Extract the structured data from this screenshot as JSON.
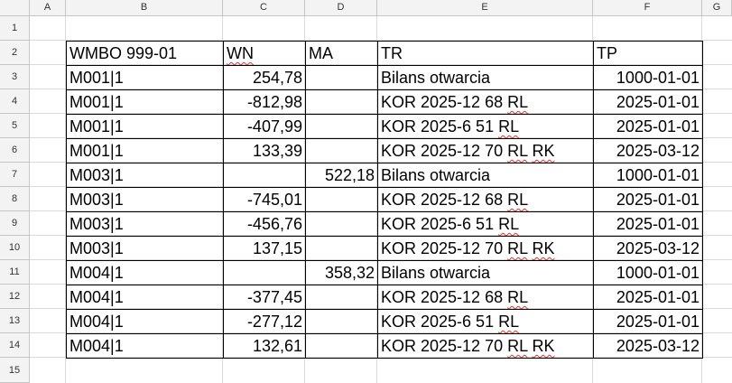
{
  "columns": [
    "A",
    "B",
    "C",
    "D",
    "E",
    "F",
    "G"
  ],
  "rows": [
    "1",
    "2",
    "3",
    "4",
    "5",
    "6",
    "7",
    "8",
    "9",
    "10",
    "11",
    "12",
    "13",
    "14",
    "15"
  ],
  "table": {
    "headers": [
      "WMBO 999-01",
      "WN",
      "MA",
      "TR",
      "TP"
    ],
    "rows": [
      {
        "b": "M001|1",
        "c": "254,78",
        "d": "",
        "e": "Bilans otwarcia",
        "f": "1000-01-01"
      },
      {
        "b": "M001|1",
        "c": "-812,98",
        "d": "",
        "e": "KOR 2025-12 68 RL",
        "f": "2025-01-01"
      },
      {
        "b": "M001|1",
        "c": "-407,99",
        "d": "",
        "e": "KOR 2025-6 51 RL",
        "f": "2025-01-01"
      },
      {
        "b": "M001|1",
        "c": "133,39",
        "d": "",
        "e": "KOR 2025-12 70 RL RK",
        "f": "2025-03-12"
      },
      {
        "b": "M003|1",
        "c": "",
        "d": "522,18",
        "e": "Bilans otwarcia",
        "f": "1000-01-01"
      },
      {
        "b": "M003|1",
        "c": "-745,01",
        "d": "",
        "e": "KOR 2025-12 68 RL",
        "f": "2025-01-01"
      },
      {
        "b": "M003|1",
        "c": "-456,76",
        "d": "",
        "e": "KOR 2025-6 51 RL",
        "f": "2025-01-01"
      },
      {
        "b": "M003|1",
        "c": "137,15",
        "d": "",
        "e": "KOR 2025-12 70 RL RK",
        "f": "2025-03-12"
      },
      {
        "b": "M004|1",
        "c": "",
        "d": "358,32",
        "e": "Bilans otwarcia",
        "f": "1000-01-01"
      },
      {
        "b": "M004|1",
        "c": "-377,45",
        "d": "",
        "e": "KOR 2025-12 68 RL",
        "f": "2025-01-01"
      },
      {
        "b": "M004|1",
        "c": "-277,12",
        "d": "",
        "e": "KOR 2025-6 51 RL",
        "f": "2025-01-01"
      },
      {
        "b": "M004|1",
        "c": "132,61",
        "d": "",
        "e": "KOR 2025-12 70 RL RK",
        "f": "2025-03-12"
      }
    ]
  }
}
